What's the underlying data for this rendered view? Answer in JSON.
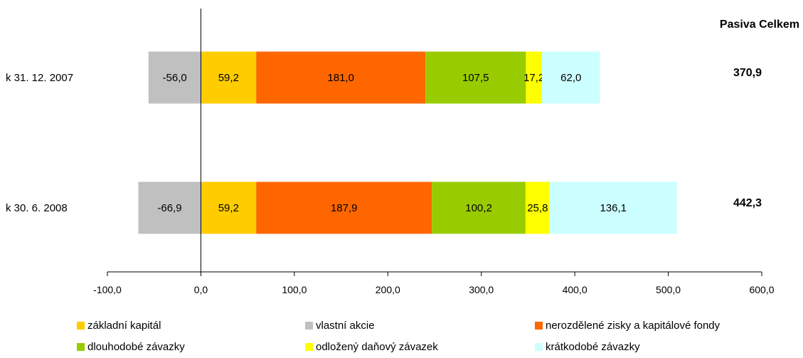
{
  "chart_data": {
    "type": "bar",
    "orientation": "horizontal",
    "stacked": true,
    "categories": [
      "k 31. 12. 2007",
      "k 30. 6. 2008"
    ],
    "series": [
      {
        "name": "vlastní akcie",
        "color": "#c0c0c0",
        "values": [
          -56.0,
          -66.9
        ],
        "labels": [
          "-56,0",
          "-66,9"
        ]
      },
      {
        "name": "základní kapitál",
        "color": "#ffcc00",
        "values": [
          59.2,
          59.2
        ],
        "labels": [
          "59,2",
          "59,2"
        ]
      },
      {
        "name": "nerozdělené zisky a kapitálové fondy",
        "color": "#ff6600",
        "values": [
          181.0,
          187.9
        ],
        "labels": [
          "181,0",
          "187,9"
        ]
      },
      {
        "name": "dlouhodobé závazky",
        "color": "#99cc00",
        "values": [
          107.5,
          100.2
        ],
        "labels": [
          "107,5",
          "100,2"
        ]
      },
      {
        "name": "odložený daňový závazek",
        "color": "#ffff00",
        "values": [
          17.2,
          25.8
        ],
        "labels": [
          "17,2",
          "25,8"
        ]
      },
      {
        "name": "krátkodobé závazky",
        "color": "#ccffff",
        "values": [
          62.0,
          136.1
        ],
        "labels": [
          "62,0",
          "136,1"
        ]
      }
    ],
    "totals_title": "Pasiva Celkem",
    "totals": [
      "370,9",
      "442,3"
    ],
    "xlim": [
      -100,
      600
    ],
    "xticks": [
      -100,
      0,
      100,
      200,
      300,
      400,
      500,
      600
    ],
    "xtick_labels": [
      "-100,0",
      "0,0",
      "100,0",
      "200,0",
      "300,0",
      "400,0",
      "500,0",
      "600,0"
    ],
    "legend_order": [
      "základní kapitál",
      "vlastní akcie",
      "nerozdělené zisky a kapitálové fondy",
      "dlouhodobé závazky",
      "odložený daňový závazek",
      "krátkodobé závazky"
    ],
    "legend_position": "bottom",
    "grid": false
  }
}
